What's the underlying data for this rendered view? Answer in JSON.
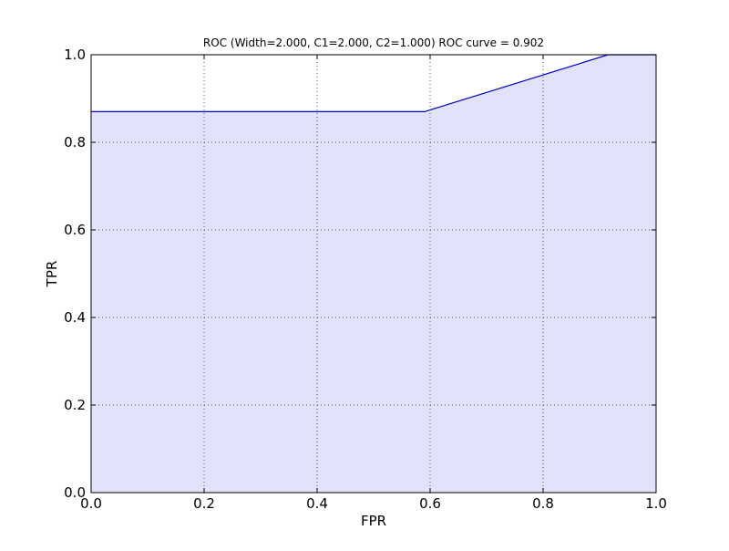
{
  "chart_data": {
    "type": "area",
    "title": "ROC (Width=2.000, C1=2.000, C2=1.000) ROC curve = 0.902",
    "xlabel": "FPR",
    "ylabel": "TPR",
    "xlim": [
      0.0,
      1.0
    ],
    "ylim": [
      0.0,
      1.0
    ],
    "xticks": [
      "0.0",
      "0.2",
      "0.4",
      "0.6",
      "0.8",
      "1.0"
    ],
    "yticks": [
      "0.0",
      "0.2",
      "0.4",
      "0.6",
      "0.8",
      "1.0"
    ],
    "grid": true,
    "series": [
      {
        "x": [
          0.0,
          0.59,
          0.915,
          1.0
        ],
        "y": [
          0.87,
          0.87,
          1.0,
          1.0
        ]
      }
    ],
    "colors": {
      "line": "#0000cc",
      "fill": "#e2e2fb",
      "grid": "#555555",
      "frame": "#000000"
    }
  }
}
